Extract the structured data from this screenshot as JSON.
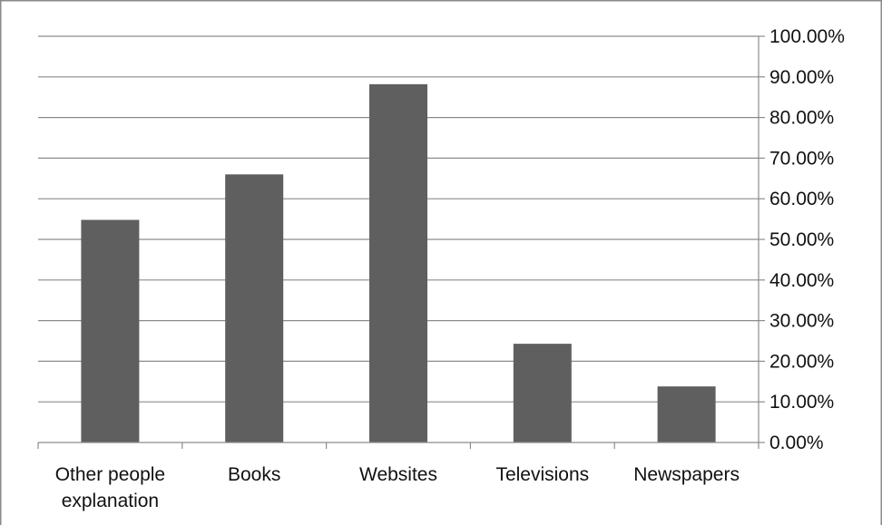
{
  "chart_data": {
    "type": "bar",
    "categories": [
      "Other people explanation",
      "Books",
      "Websites",
      "Televisions",
      "Newspapers"
    ],
    "category_lines": [
      [
        "Other people",
        "explanation"
      ],
      [
        "Books"
      ],
      [
        "Websites"
      ],
      [
        "Televisions"
      ],
      [
        "Newspapers"
      ]
    ],
    "values": [
      54.8,
      66.0,
      88.2,
      24.3,
      13.8
    ],
    "ylim": [
      0,
      100
    ],
    "y_ticks": [
      0,
      10,
      20,
      30,
      40,
      50,
      60,
      70,
      80,
      90,
      100
    ],
    "y_tick_labels": [
      "0.00%",
      "10.00%",
      "20.00%",
      "30.00%",
      "40.00%",
      "50.00%",
      "60.00%",
      "70.00%",
      "80.00%",
      "90.00%",
      "100.00%"
    ],
    "y_axis_side": "right",
    "grid": true,
    "legend": "none",
    "title": "",
    "xlabel": "",
    "ylabel": "",
    "colors": {
      "bar": "#5f5f5f",
      "grid": "#8c8c8c",
      "frame": "#8a8a8a"
    }
  }
}
